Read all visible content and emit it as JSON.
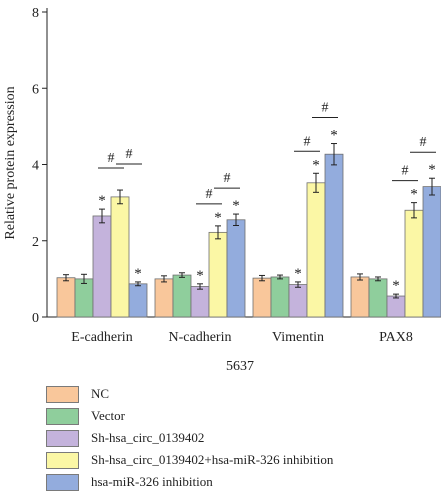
{
  "chart_data": {
    "type": "bar",
    "ylabel": "Relative protein expression",
    "xlabel": "5637",
    "ylim": [
      0,
      8
    ],
    "yticks": [
      "0",
      "2",
      "4",
      "6",
      "8"
    ],
    "grid": false,
    "legend_position": "bottom",
    "categories": [
      "E-cadherin",
      "N-cadherin",
      "Vimentin",
      "PAX8"
    ],
    "series": [
      {
        "name": "NC",
        "color": "#f9c79b",
        "values": [
          1.03,
          1.0,
          1.02,
          1.05
        ],
        "errors": [
          0.08,
          0.08,
          0.07,
          0.08
        ]
      },
      {
        "name": "Vector",
        "color": "#8fce9c",
        "values": [
          1.0,
          1.1,
          1.05,
          1.0
        ],
        "errors": [
          0.12,
          0.06,
          0.05,
          0.05
        ]
      },
      {
        "name": "Sh-hsa_circ_0139402",
        "color": "#c4b3dc",
        "values": [
          2.65,
          0.8,
          0.85,
          0.55
        ],
        "errors": [
          0.18,
          0.07,
          0.07,
          0.05
        ]
      },
      {
        "name": "Sh-hsa_circ_0139402+hsa-miR-326 inhibition",
        "color": "#fbf7a5",
        "values": [
          3.15,
          2.22,
          3.52,
          2.8
        ],
        "errors": [
          0.18,
          0.17,
          0.25,
          0.2
        ]
      },
      {
        "name": "hsa-miR-326 inhibition",
        "color": "#93acdd",
        "values": [
          0.87,
          2.55,
          4.27,
          3.42
        ],
        "errors": [
          0.05,
          0.15,
          0.28,
          0.22
        ]
      }
    ],
    "annotations": {
      "star": "*",
      "hash": "#"
    }
  }
}
